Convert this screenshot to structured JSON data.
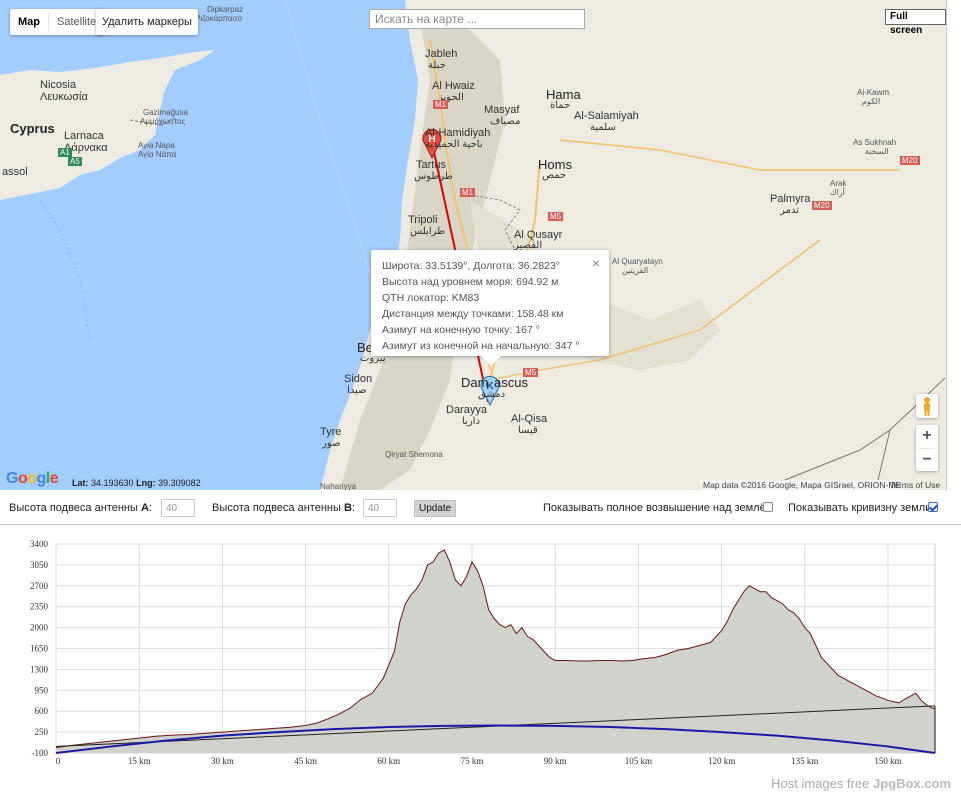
{
  "map": {
    "type_tabs": [
      {
        "label": "Map",
        "active": true
      },
      {
        "label": "Satellite",
        "active": false
      }
    ],
    "delete_markers_label": "Удалить маркеры",
    "search_placeholder": "Искать на карте ...",
    "fullscreen_label": "Full screen",
    "zoom_in": "+",
    "zoom_out": "−",
    "google_logo": [
      "G",
      "o",
      "o",
      "g",
      "l",
      "e"
    ],
    "google_colors": [
      "#4285f4",
      "#ea4335",
      "#fbbc05",
      "#4285f4",
      "#34a853",
      "#ea4335"
    ],
    "coords": {
      "lat_label": "Lat:",
      "lat": "34.193630",
      "lng_label": "Lng:",
      "lng": "39.309082"
    },
    "attribution": "Map data ©2016 Google, Mapa GISrael, ORION-ME",
    "terms": "Terms of Use",
    "marker_start": "H",
    "marker_end": "K",
    "labels": {
      "cyprus": "Cyprus",
      "nicosia": "Nicosia",
      "nicosia_gr": "Λευκωσία",
      "larnaca": "Larnaca",
      "larnaca_gr": "Λάρνακα",
      "gazimagusa": "Gazimağusa",
      "ammochostos": "Αμμόχωστος",
      "ayia_napa": "Ayia Napa",
      "ayia_napa_gr": "Αγία Νάπα",
      "assol": "assol",
      "dipkarpaz": "Dipkarpaz",
      "rizokarpaso": "Ριζοκάρπασο",
      "jableh": "Jableh",
      "jableh_ar": "جبلة",
      "al_hwaiz": "Al Hwaiz",
      "al_hwaiz_ar": "الحويز",
      "masyaf": "Masyaf",
      "masyaf_ar": "مصياف",
      "hama": "Hama",
      "hama_ar": "حماة",
      "al_salamiyah": "Al-Salamiyah",
      "al_salamiyah_ar": "سلمية",
      "al_kawm": "Al-Kawm",
      "al_kawm_ar": "الكوم",
      "as_sukhnah": "As Sukhnah",
      "as_sukhnah_ar": "السخنة",
      "arak": "Arak",
      "arak_ar": "أراك",
      "palmyra": "Palmyra",
      "palmyra_ar": "تدمر",
      "al_hamidiyah": "Al-Hamidiyah",
      "al_hamidiyah_ar": "ناحية الحميدية",
      "tartus": "Tartus",
      "tartus_ar": "طرطوس",
      "homs": "Homs",
      "homs_ar": "حمص",
      "tripoli": "Tripoli",
      "tripoli_ar": "طرابلس",
      "al_qusayr": "Al Qusayr",
      "al_qusayr_ar": "القصير",
      "al_quaryatayn": "Al Quaryatayn",
      "al_quaryatayn_ar": "القريتين",
      "beirut_frag": "Be",
      "beirut_ar_frag": "بيروت",
      "sidon": "Sidon",
      "sidon_ar": "صيدا",
      "damascus_a": "Dam",
      "damascus_b": "ascus",
      "damascus_ar": "دمشق",
      "darayya": "Darayya",
      "darayya_ar": "داريا",
      "al_qisa": "Al-Qisa",
      "al_qisa_ar": "قيسا",
      "tyre": "Tyre",
      "tyre_ar": "صور",
      "qiryat_shemona": "Qiryat Shemona",
      "nahariyya": "Nahariyya",
      "road_a1": "A1",
      "road_a5": "A5",
      "road_m1a": "M1",
      "road_m1b": "M1",
      "road_m5a": "M5",
      "road_m5b": "M5",
      "road_m20a": "M20",
      "road_m20b": "M20"
    }
  },
  "infowindow": {
    "lines": [
      "Широта: 33.5139°, Долгота: 36.2823°",
      "Высота над уровнем моря: 694.92 м",
      "QTH локатор: KM83",
      "Дистанция между точками: 158.48 км",
      "Азимут на конечную точку: 167 °",
      "Азимут из конечной на начальную: 347 °"
    ],
    "close": "×"
  },
  "controls": {
    "antenna_a_label": "Высота подвеса антенны ",
    "antenna_a_letter": "A",
    "antenna_a_value": "40",
    "antenna_b_label": "Высота подвеса антенны ",
    "antenna_b_letter": "B",
    "antenna_b_value": "40",
    "colon": ":",
    "update_label": "Update",
    "show_elevation_label": "Показывать полное возвышение над землёй",
    "show_elevation_checked": false,
    "show_curvature_label": "Показывать кривизну земли",
    "show_curvature_checked": true
  },
  "chart_data": {
    "type": "area",
    "title": "",
    "xlabel": "",
    "ylabel": "",
    "xlim": [
      0,
      158.48
    ],
    "ylim": [
      -100,
      3400
    ],
    "x_ticks": [
      0,
      15,
      30,
      45,
      60,
      75,
      90,
      105,
      120,
      135,
      150
    ],
    "x_tick_labels": [
      "0",
      "15 km",
      "30 km",
      "45 km",
      "60 km",
      "75 km",
      "90 km",
      "105 km",
      "120 km",
      "135 km",
      "150 km"
    ],
    "y_ticks": [
      -100,
      250,
      600,
      950,
      1300,
      1650,
      2000,
      2350,
      2700,
      3050,
      3400
    ],
    "y_tick_labels": [
      "-100",
      "250",
      "600",
      "950",
      "1300",
      "1650",
      "2000",
      "2350",
      "2700",
      "3050",
      "3400"
    ],
    "grid": true,
    "colors": {
      "terrain_fill": "#d2d2cd",
      "terrain_line": "#6b1414",
      "curvature": "#1a1aa8",
      "los": "#222222"
    },
    "series": [
      {
        "key": "terrain",
        "x": [
          0,
          3,
          6,
          9,
          12,
          15,
          18,
          21,
          24,
          27,
          30,
          33,
          36,
          39,
          42,
          45,
          47,
          49,
          51,
          53,
          55,
          57,
          59,
          61,
          62,
          63,
          64,
          65,
          66,
          67,
          68,
          69,
          70,
          71,
          72,
          73,
          74,
          75,
          76,
          77,
          78,
          79,
          80,
          81,
          82,
          83,
          84,
          85,
          86,
          87,
          88,
          89,
          90,
          92,
          94,
          96,
          98,
          100,
          102,
          104,
          106,
          108,
          110,
          112,
          114,
          116,
          118,
          119,
          120,
          121,
          122,
          123,
          124,
          125,
          126,
          127,
          128,
          129,
          130,
          131,
          132,
          133,
          134,
          135,
          136,
          137,
          138,
          139,
          140,
          141,
          142,
          143,
          144,
          145,
          146,
          147,
          148,
          149,
          150,
          151,
          152,
          153,
          154,
          155,
          156,
          157,
          158,
          158.48
        ],
        "values": [
          -10,
          30,
          60,
          90,
          120,
          150,
          180,
          200,
          210,
          230,
          250,
          270,
          290,
          310,
          330,
          360,
          400,
          470,
          550,
          650,
          800,
          900,
          1150,
          1600,
          2100,
          2400,
          2550,
          2650,
          2800,
          3050,
          3100,
          3250,
          3300,
          3100,
          2800,
          2700,
          2850,
          3100,
          2950,
          2700,
          2300,
          2150,
          2050,
          2000,
          2050,
          1900,
          2000,
          1850,
          1800,
          1700,
          1600,
          1500,
          1450,
          1450,
          1440,
          1440,
          1450,
          1450,
          1440,
          1450,
          1480,
          1500,
          1550,
          1620,
          1650,
          1700,
          1750,
          1850,
          1950,
          2100,
          2300,
          2450,
          2600,
          2700,
          2650,
          2600,
          2600,
          2500,
          2450,
          2400,
          2300,
          2250,
          2150,
          2000,
          1900,
          1700,
          1500,
          1400,
          1300,
          1200,
          1150,
          1100,
          1050,
          1000,
          950,
          900,
          850,
          820,
          780,
          760,
          740,
          800,
          850,
          900,
          780,
          700,
          650,
          650
        ]
      },
      {
        "key": "curvature",
        "x": [
          0,
          10,
          20,
          30,
          40,
          50,
          60,
          70,
          79.24,
          90,
          100,
          110,
          120,
          130,
          140,
          150,
          158.48
        ],
        "values": [
          -100,
          10,
          110,
          190,
          250,
          300,
          335,
          355,
          360,
          355,
          335,
          300,
          250,
          190,
          110,
          10,
          -100
        ]
      },
      {
        "key": "line_of_sight",
        "x": [
          0,
          158.48
        ],
        "values": [
          10,
          690
        ]
      }
    ]
  },
  "footer": {
    "prefix": "Host images free ",
    "brand": "JpgBox.com"
  }
}
